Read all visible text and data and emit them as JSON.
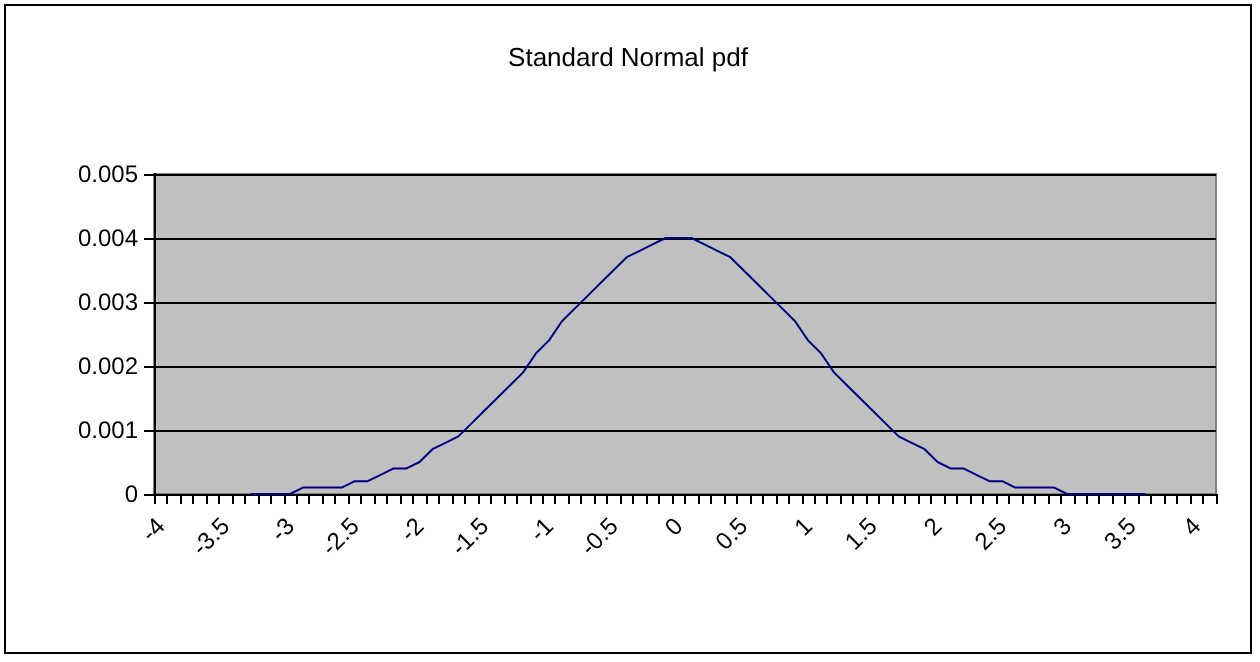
{
  "chart_data": {
    "type": "line",
    "title": "Standard Normal pdf",
    "categories": [
      "-4",
      null,
      null,
      null,
      null,
      "-3.5",
      null,
      null,
      null,
      null,
      "-3",
      null,
      null,
      null,
      null,
      "-2.5",
      null,
      null,
      null,
      null,
      "-2",
      null,
      null,
      null,
      null,
      "-1.5",
      null,
      null,
      null,
      null,
      "-1",
      null,
      null,
      null,
      null,
      "-0.5",
      null,
      null,
      null,
      null,
      "0",
      null,
      null,
      null,
      null,
      "0.5",
      null,
      null,
      null,
      null,
      "1",
      null,
      null,
      null,
      null,
      "1.5",
      null,
      null,
      null,
      null,
      "2",
      null,
      null,
      null,
      null,
      "2.5",
      null,
      null,
      null,
      null,
      "3",
      null,
      null,
      null,
      null,
      "3.5",
      null,
      null,
      null,
      null,
      "4",
      null
    ],
    "series": [
      {
        "color": "#000080",
        "values": [
          null,
          null,
          null,
          null,
          null,
          null,
          null,
          0,
          0,
          0,
          0,
          0.0001,
          0.0001,
          0.0001,
          0.0001,
          0.0002,
          0.0002,
          0.0003,
          0.0004,
          0.0004,
          0.0005,
          0.0007,
          0.0008,
          0.0009,
          0.0011,
          0.0013,
          0.0015,
          0.0017,
          0.0019,
          0.0022,
          0.0024,
          0.0027,
          0.0029,
          0.0031,
          0.0033,
          0.0035,
          0.0037,
          0.0038,
          0.0039,
          0.004,
          0.004,
          0.004,
          0.0039,
          0.0038,
          0.0037,
          0.0035,
          0.0033,
          0.0031,
          0.0029,
          0.0027,
          0.0024,
          0.0022,
          0.0019,
          0.0017,
          0.0015,
          0.0013,
          0.0011,
          0.0009,
          0.0008,
          0.0007,
          0.0005,
          0.0004,
          0.0004,
          0.0003,
          0.0002,
          0.0002,
          0.0001,
          0.0001,
          0.0001,
          0.0001,
          0,
          0,
          0,
          0,
          0,
          0,
          0,
          null,
          null,
          null,
          null,
          null
        ]
      }
    ],
    "ylim": [
      0,
      0.005
    ],
    "yticks": [
      0,
      0.001,
      0.002,
      0.003,
      0.004,
      0.005
    ],
    "grid": "y",
    "marker": "none",
    "line_style": "solid"
  }
}
